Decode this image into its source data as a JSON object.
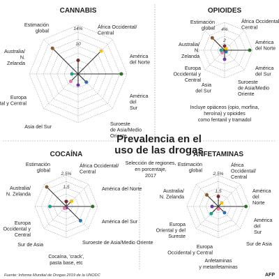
{
  "header": {
    "title_line1": "Prevalencia en el",
    "title_line2": "uso de las drogas",
    "subtitle_line1": "Selección de regiones,",
    "subtitle_line2": "en porcentaje,",
    "subtitle_line3": "2017"
  },
  "footer": {
    "source": "Fuente: Informe Mundial de Drogas 2019 de la UNODC",
    "credit": "AFP"
  },
  "chart_data": [
    {
      "type": "radar",
      "title": "CANNABIS",
      "rmax": 14,
      "rings": [
        2,
        4,
        6,
        8,
        10,
        12,
        14
      ],
      "tick_labels": [
        "4",
        "10",
        "14%"
      ],
      "categories": [
        {
          "label": [
            "Estimación",
            "global"
          ],
          "value": 3.9,
          "color": "#7b2a2a"
        },
        {
          "label": [
            "África Occidental/",
            "Central"
          ],
          "value": 9.3,
          "color": "#f2c20f"
        },
        {
          "label": [
            "América",
            "del Norte"
          ],
          "value": 12.4,
          "color": "#2f6f2a"
        },
        {
          "label": [
            "América",
            "del",
            "Sur"
          ],
          "value": 3.3,
          "color": "#2a6fb5"
        },
        {
          "label": [
            "Suroeste",
            "de Asia/Medio",
            "Oriente"
          ],
          "value": 3.2,
          "color": "#6a3aa0"
        },
        {
          "label": [
            "Asia del Sur"
          ],
          "value": 3.0,
          "color": "#e87ba4"
        },
        {
          "label": [
            "Europa",
            "Occidental y Central"
          ],
          "value": 1.8,
          "color": "#18a08a"
        },
        {
          "label": [
            "Australia/",
            "N.",
            "Zelanda"
          ],
          "value": 10.4,
          "color": "#8b5a2b"
        }
      ]
    },
    {
      "type": "radar",
      "title": "OPIOIDES",
      "rmax": 4,
      "rings": [
        1,
        2,
        3,
        4
      ],
      "tick_labels": [
        "2",
        "4%"
      ],
      "categories": [
        {
          "label": [
            "Estimación",
            "global"
          ],
          "value": 0.6,
          "color": "#7b2a2a"
        },
        {
          "label": [
            "África Occidental/",
            "Central"
          ],
          "value": 0.3,
          "color": "#f2c20f"
        },
        {
          "label": [
            "América",
            "del Norte"
          ],
          "value": 3.6,
          "color": "#2f6f2a"
        },
        {
          "label": [
            "América",
            "del Sur"
          ],
          "value": 0.3,
          "color": "#2a6fb5"
        },
        {
          "label": [
            "Suroeste",
            "de Asia/Medio",
            "Oriente"
          ],
          "value": 1.3,
          "color": "#6a3aa0"
        },
        {
          "label": [
            "Asia",
            "del Sur"
          ],
          "value": 0.5,
          "color": "#e87ba4"
        },
        {
          "label": [
            "Europa",
            "Occidental y",
            "Central"
          ],
          "value": 0.5,
          "color": "#18a08a"
        },
        {
          "label": [
            "Australia/",
            "N.",
            "Zelanda"
          ],
          "value": 2.5,
          "color": "#8b5a2b"
        }
      ],
      "note": [
        "Incluye opiáceos (opio, morfina,",
        "heroína) y opioides",
        "como fentanil y tramadol"
      ]
    },
    {
      "type": "radar",
      "title": "COCAÍNA",
      "rmax": 2.5,
      "rings": [
        0.5,
        1,
        1.5,
        2,
        2.5
      ],
      "tick_labels": [
        "1,5",
        "2,5%"
      ],
      "categories": [
        {
          "label": [
            "Estimación",
            "global"
          ],
          "value": 0.4,
          "color": "#7b2a2a"
        },
        {
          "label": [
            "África Occidental/",
            "Central"
          ],
          "value": 0.6,
          "color": "#f2c20f"
        },
        {
          "label": [
            "América del Norte"
          ],
          "value": 2.1,
          "color": "#2f6f2a"
        },
        {
          "label": [
            "América del Sur"
          ],
          "value": 1.6,
          "color": "#2a6fb5"
        },
        {
          "label": [
            "Suroeste de Asia/Medio Oriente"
          ],
          "value": 0.1,
          "color": "#6a3aa0"
        },
        {
          "label": [
            "Sur de Asia"
          ],
          "value": 0.2,
          "color": "#e87ba4"
        },
        {
          "label": [
            "Europa",
            "Occidental y",
            "Central"
          ],
          "value": 1.3,
          "color": "#18a08a"
        },
        {
          "label": [
            "Australia/",
            "N. Zelanda"
          ],
          "value": 2.2,
          "color": "#8b5a2b"
        }
      ],
      "note": [
        "Cocaína, 'crack',",
        "pasta base, etc"
      ]
    },
    {
      "type": "radar",
      "title": "ANFETAMINAS",
      "rmax": 2.5,
      "rings": [
        0.5,
        1,
        1.5,
        2,
        2.5
      ],
      "tick_labels": [
        "1,5",
        "2,5%"
      ],
      "categories": [
        {
          "label": [
            "Estimación",
            "global"
          ],
          "value": 0.8,
          "color": "#7b2a2a"
        },
        {
          "label": [
            "África",
            "Occidental/",
            "Central"
          ],
          "value": 0.4,
          "color": "#f2c20f"
        },
        {
          "label": [
            "América",
            "del",
            "Norte"
          ],
          "value": 2.2,
          "color": "#2f6f2a"
        },
        {
          "label": [
            "América",
            "del",
            "Sur"
          ],
          "value": 0.7,
          "color": "#2a6fb5"
        },
        {
          "label": [
            "Sur de Asia"
          ],
          "value": 0.2,
          "color": "#e87ba4"
        },
        {
          "label": [
            "Europa",
            "Occidental y Central"
          ],
          "value": 0.8,
          "color": "#18a08a"
        },
        {
          "label": [
            "Europa",
            "Oriental y del",
            "Sureste"
          ],
          "value": 0.5,
          "color": "#6a3aa0"
        },
        {
          "label": [
            "Australia/",
            "N. Zelanda"
          ],
          "value": 1.3,
          "color": "#8b5a2b"
        }
      ],
      "note": [
        "Anfetaminas",
        "y metanfetaminas"
      ]
    }
  ]
}
